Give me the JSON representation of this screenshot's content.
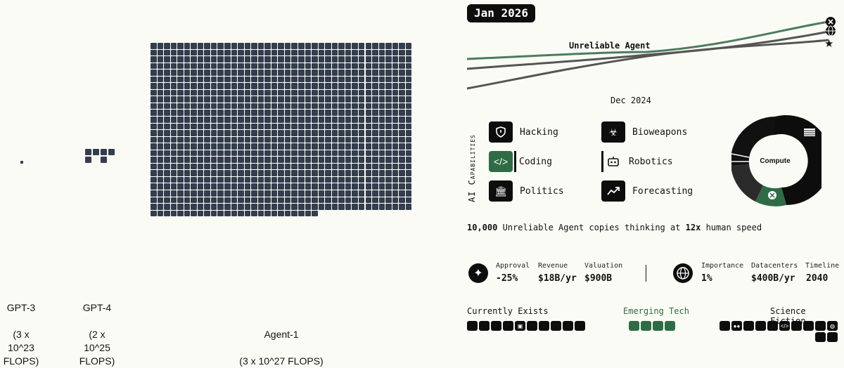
{
  "models": [
    {
      "name": "GPT-3",
      "flops": "(3 x\n10^23\nFLOPS)",
      "squares": 1
    },
    {
      "name": "GPT-4",
      "flops": "(2 x\n10^25\nFLOPS)",
      "squares": 7
    },
    {
      "name": "Agent-1",
      "flops": "(3 x 10^27 FLOPS)",
      "squares": 1000
    }
  ],
  "date_badge": "Jan 2026",
  "trend": {
    "label": "Unreliable Agent",
    "start_label": "Dec 2024",
    "colors": {
      "green": "#4a7d5d",
      "gray": "#555555"
    },
    "end_icons": [
      "openbrain-icon",
      "globe-icon",
      "china-flag-icon"
    ]
  },
  "capabilities_title": "AI Capabilities",
  "capabilities": [
    {
      "label": "Hacking",
      "icon": "shield-icon",
      "active": false
    },
    {
      "label": "Bioweapons",
      "icon": "biohazard-icon",
      "active": false
    },
    {
      "label": "Coding",
      "icon": "code-icon",
      "active": true
    },
    {
      "label": "Robotics",
      "icon": "robot-icon",
      "active": false
    },
    {
      "label": "Politics",
      "icon": "capitol-icon",
      "active": false
    },
    {
      "label": "Forecasting",
      "icon": "trend-up-icon",
      "active": false
    }
  ],
  "compute_donut": {
    "label": "Compute",
    "colors": {
      "main": "#0d0d0d",
      "secondary": "#2b2b2b",
      "openbrain": "#2f6b45"
    }
  },
  "copies": {
    "count": "10,000",
    "middle": " Unreliable Agent copies thinking at ",
    "speed": "12x",
    "end": " human speed"
  },
  "openbrain_stats": [
    {
      "head": "Approval",
      "value": "-25%"
    },
    {
      "head": "Revenue",
      "value": "$18B/yr"
    },
    {
      "head": "Valuation",
      "value": "$900B"
    }
  ],
  "world_stats": [
    {
      "head": "Importance",
      "value": "1%"
    },
    {
      "head": "Datacenters",
      "value": "$400B/yr"
    },
    {
      "head": "Timeline",
      "value": "2040"
    }
  ],
  "tech_categories": [
    {
      "label": "Currently Exists",
      "color": "#111111"
    },
    {
      "label": "Emerging Tech",
      "color": "#2f6b45"
    },
    {
      "label": "Science Fiction",
      "color": "#111111"
    }
  ]
}
